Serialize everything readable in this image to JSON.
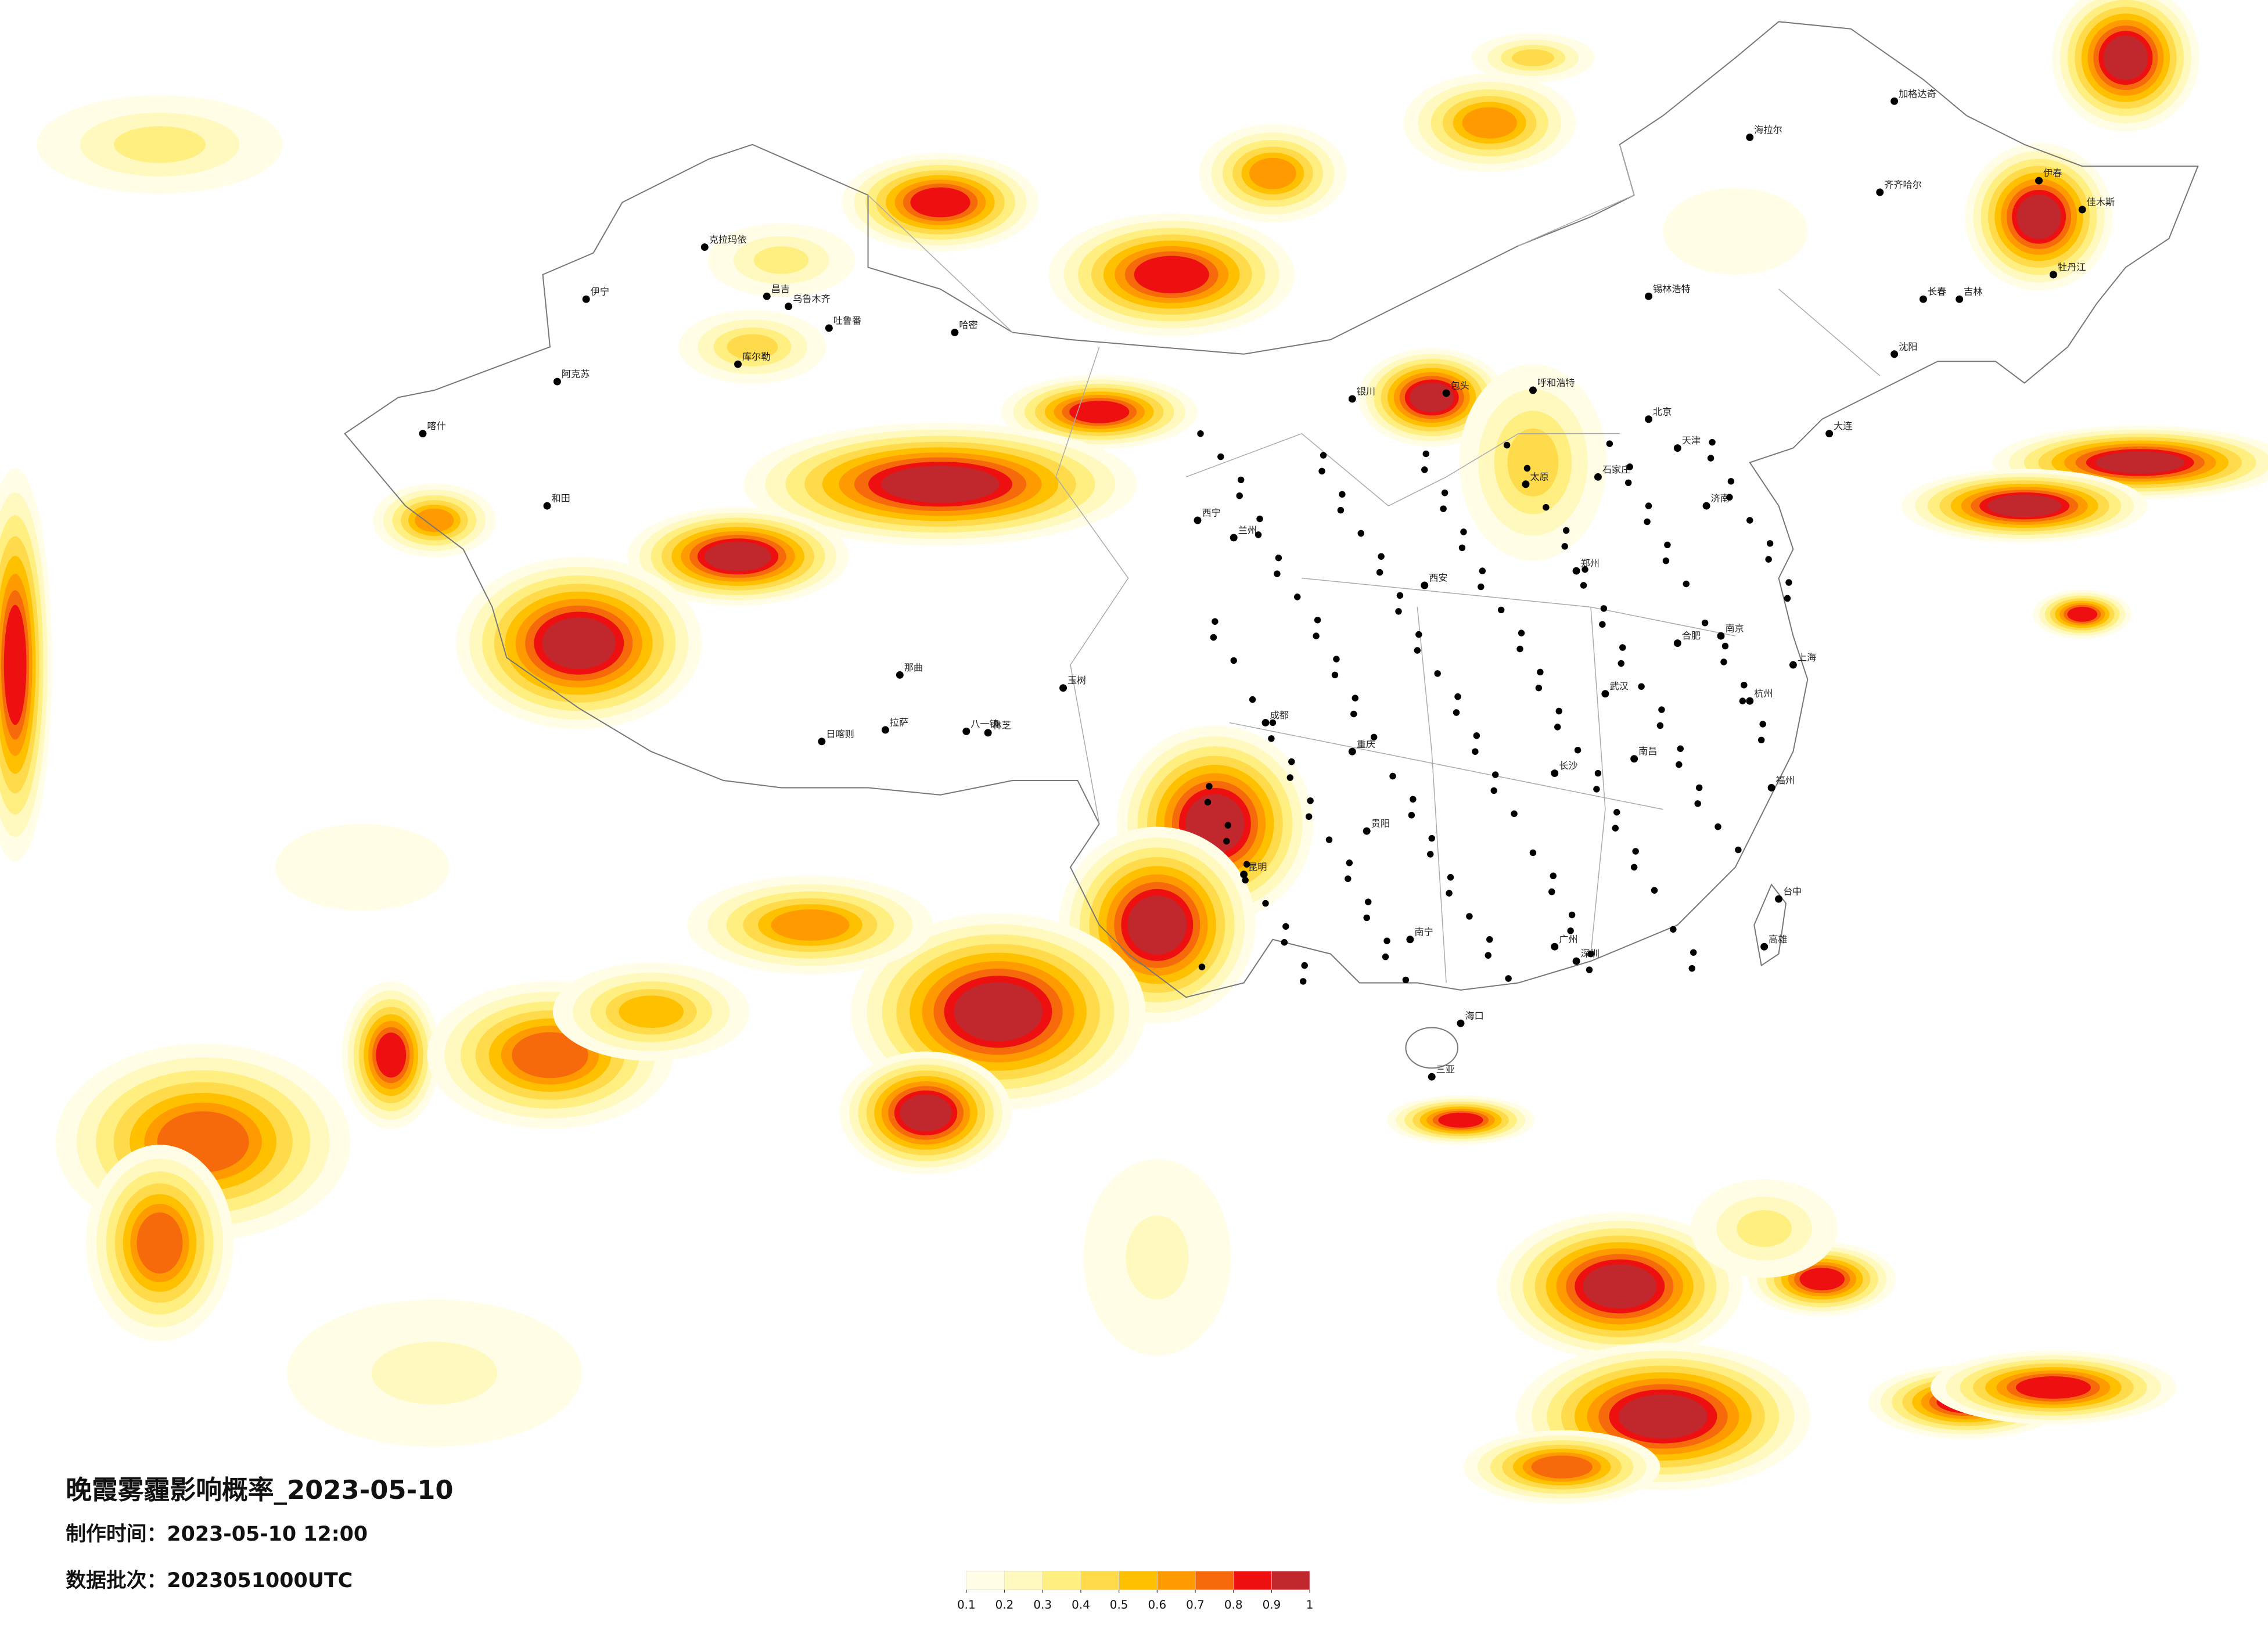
{
  "title": "晚霞雾霾影响概率_2023-05-10",
  "production_time": {
    "label": "制作时间：",
    "value": "2023-05-10 12:00"
  },
  "batch": {
    "label": "数据批次：",
    "value": "2023051000UTC"
  },
  "legend": {
    "colors": [
      "#fffde6",
      "#fff8bf",
      "#ffee80",
      "#ffda4a",
      "#ffc000",
      "#ff9b00",
      "#f76a0c",
      "#ee1010",
      "#c0282e"
    ],
    "ticks": [
      0.1,
      0.2,
      0.3,
      0.4,
      0.5,
      0.6,
      0.7,
      0.8,
      0.9,
      1
    ]
  },
  "cities": [
    "克拉玛依",
    "伊宁",
    "昌吉",
    "乌鲁木齐",
    "吐鲁番",
    "哈密",
    "库尔勒",
    "阿克苏",
    "喀什",
    "和田",
    "日喀则",
    "拉萨",
    "八一镇",
    "林芝",
    "那曲",
    "玉树",
    "西宁",
    "兰州",
    "银川",
    "呼和浩特",
    "包头",
    "北京",
    "天津",
    "石家庄",
    "太原",
    "济南",
    "郑州",
    "西安",
    "武汉",
    "长沙",
    "南昌",
    "合肥",
    "南京",
    "上海",
    "杭州",
    "福州",
    "广州",
    "深圳",
    "南宁",
    "海口",
    "昆明",
    "贵阳",
    "成都",
    "重庆",
    "伊春",
    "佳木斯",
    "牡丹江",
    "长春",
    "吉林",
    "沈阳",
    "大连",
    "齐齐哈尔",
    "海拉尔",
    "加格达奇",
    "锡林浩特",
    "台中",
    "高雄",
    "三亚"
  ]
}
